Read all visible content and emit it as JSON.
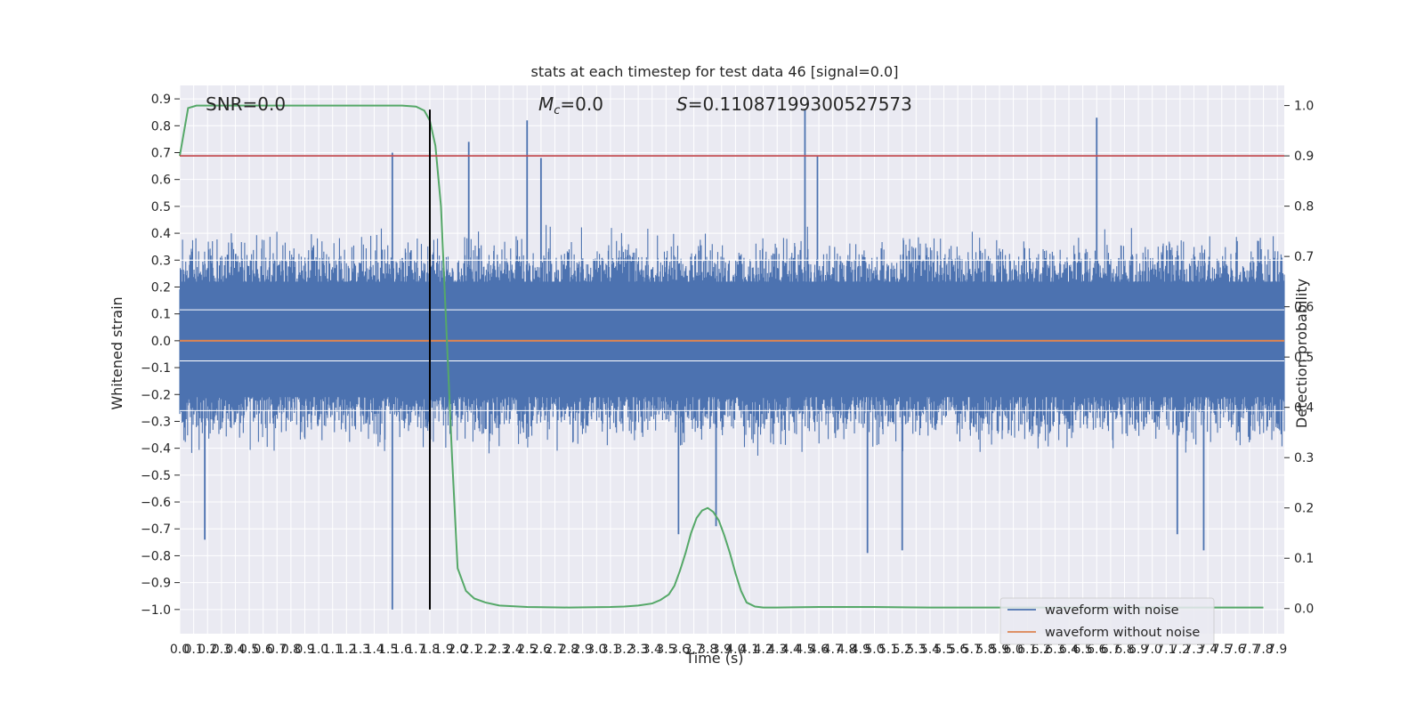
{
  "chart_data": {
    "type": "line",
    "title": "stats at each timestep for test data 46 [signal=0.0]",
    "xlabel": "Time (s)",
    "ylabel": "Whitened strain",
    "y2label": "Detection probability",
    "xlim": [
      0.0,
      7.95
    ],
    "ylim": [
      -1.09,
      0.95
    ],
    "y2lim": [
      -0.05,
      1.04
    ],
    "x_ticks": [
      0.0,
      0.1,
      0.2,
      0.3,
      0.4,
      0.5,
      0.6,
      0.7,
      0.8,
      0.9,
      1.0,
      1.1,
      1.2,
      1.3,
      1.4,
      1.5,
      1.6,
      1.7,
      1.8,
      1.9,
      2.0,
      2.1,
      2.2,
      2.3,
      2.4,
      2.5,
      2.6,
      2.7,
      2.8,
      2.9,
      3.0,
      3.1,
      3.2,
      3.3,
      3.4,
      3.5,
      3.6,
      3.7,
      3.8,
      3.9,
      4.0,
      4.1,
      4.2,
      4.3,
      4.4,
      4.5,
      4.6,
      4.7,
      4.8,
      4.9,
      5.0,
      5.1,
      5.2,
      5.3,
      5.4,
      5.5,
      5.6,
      5.7,
      5.8,
      5.9,
      6.0,
      6.1,
      6.2,
      6.3,
      6.4,
      6.5,
      6.6,
      6.7,
      6.8,
      6.9,
      7.0,
      7.1,
      7.2,
      7.3,
      7.4,
      7.5,
      7.6,
      7.7,
      7.8,
      7.9
    ],
    "x_tick_labels": [
      "0.0",
      "0.1",
      "0.2",
      "0.3",
      "0.4",
      "0.5",
      "0.6",
      "0.7",
      "0.8",
      "0.9",
      "1.0",
      "1.1",
      "1.2",
      "1.3",
      "1.4",
      "1.5",
      "1.6",
      "1.7",
      "1.8",
      "1.9",
      "2.0",
      "2.1",
      "2.2",
      "2.3",
      "2.4",
      "2.5",
      "2.6",
      "2.7",
      "2.8",
      "2.9",
      "3.0",
      "3.1",
      "3.2",
      "3.3",
      "3.4",
      "3.5",
      "3.6",
      "3.7",
      "3.8",
      "3.9",
      "4.0",
      "4.1",
      "4.2",
      "4.3",
      "4.4",
      "4.5",
      "4.6",
      "4.7",
      "4.8",
      "4.9",
      "5.0",
      "5.1",
      "5.2",
      "5.3",
      "5.4",
      "5.5",
      "5.6",
      "5.7",
      "5.8",
      "5.9",
      "6.0",
      "6.1",
      "6.2",
      "6.3",
      "6.4",
      "6.5",
      "6.6",
      "6.7",
      "6.8",
      "6.9",
      "7.0",
      "7.1",
      "7.2",
      "7.3",
      "7.4",
      "7.5",
      "7.6",
      "7.7",
      "7.8",
      "7.9"
    ],
    "y_ticks": [
      0.9,
      0.8,
      0.7,
      0.6,
      0.5,
      0.4,
      0.3,
      0.2,
      0.1,
      0.0,
      -0.1,
      -0.2,
      -0.3,
      -0.4,
      -0.5,
      -0.6,
      -0.7,
      -0.8,
      -0.9,
      -1.0
    ],
    "y_tick_labels": [
      "0.9",
      "0.8",
      "0.7",
      "0.6",
      "0.5",
      "0.4",
      "0.3",
      "0.2",
      "0.1",
      "0.0",
      "−0.1",
      "−0.2",
      "−0.3",
      "−0.4",
      "−0.5",
      "−0.6",
      "−0.7",
      "−0.8",
      "−0.9",
      "−1.0"
    ],
    "y2_ticks": [
      1.0,
      0.9,
      0.8,
      0.7,
      0.6,
      0.5,
      0.4,
      0.3,
      0.2,
      0.1,
      0.0
    ],
    "y2_tick_labels": [
      "1.0",
      "0.9",
      "0.8",
      "0.7",
      "0.6",
      "0.5",
      "0.4",
      "0.3",
      "0.2",
      "0.1",
      "0.0"
    ],
    "annotations": {
      "snr": "SNR=0.0",
      "mc_symbol": "M",
      "mc_subscript": "c",
      "mc_value": "=0.0",
      "s_symbol": "S",
      "s_value": "=0.11087199300527573"
    },
    "series": [
      {
        "name": "waveform with noise",
        "axis": "left",
        "color": "#4c72b0",
        "kind": "noise",
        "band_mean": 0.0,
        "band_spread": 0.33,
        "spikes": [
          {
            "x": 0.18,
            "y": -0.74
          },
          {
            "x": 1.53,
            "y": 0.7
          },
          {
            "x": 1.53,
            "y": -1.0
          },
          {
            "x": 2.08,
            "y": 0.74
          },
          {
            "x": 2.5,
            "y": 0.82
          },
          {
            "x": 2.6,
            "y": 0.68
          },
          {
            "x": 4.5,
            "y": 0.86
          },
          {
            "x": 4.59,
            "y": 0.69
          },
          {
            "x": 4.95,
            "y": -0.79
          },
          {
            "x": 5.2,
            "y": -0.78
          },
          {
            "x": 6.6,
            "y": 0.83
          },
          {
            "x": 7.37,
            "y": -0.78
          },
          {
            "x": 7.18,
            "y": -0.72
          },
          {
            "x": 3.86,
            "y": -0.69
          },
          {
            "x": 3.59,
            "y": -0.72
          }
        ]
      },
      {
        "name": "waveform without noise",
        "axis": "left",
        "color": "#dd8452",
        "kind": "line",
        "x": [
          0.0,
          7.95
        ],
        "y": [
          0.0,
          0.0
        ]
      },
      {
        "name": "detection probability",
        "axis": "right",
        "color": "#55a868",
        "kind": "line",
        "x": [
          0.0,
          0.06,
          0.12,
          0.2,
          0.4,
          0.8,
          1.2,
          1.5,
          1.6,
          1.7,
          1.76,
          1.8,
          1.84,
          1.88,
          1.92,
          1.96,
          2.0,
          2.06,
          2.12,
          2.2,
          2.3,
          2.5,
          2.8,
          3.1,
          3.2,
          3.3,
          3.4,
          3.46,
          3.52,
          3.56,
          3.6,
          3.64,
          3.68,
          3.72,
          3.76,
          3.8,
          3.84,
          3.88,
          3.92,
          3.96,
          4.0,
          4.04,
          4.08,
          4.14,
          4.2,
          4.3,
          4.6,
          5.0,
          5.4,
          6.0,
          6.6,
          7.2,
          7.8
        ],
        "y": [
          0.9,
          0.995,
          1.0,
          1.0,
          1.0,
          1.0,
          1.0,
          1.0,
          1.0,
          0.998,
          0.99,
          0.97,
          0.92,
          0.8,
          0.55,
          0.3,
          0.08,
          0.035,
          0.02,
          0.012,
          0.006,
          0.003,
          0.002,
          0.003,
          0.004,
          0.006,
          0.01,
          0.017,
          0.028,
          0.045,
          0.075,
          0.11,
          0.15,
          0.18,
          0.195,
          0.2,
          0.192,
          0.175,
          0.145,
          0.11,
          0.07,
          0.035,
          0.012,
          0.004,
          0.002,
          0.002,
          0.003,
          0.003,
          0.002,
          0.002,
          0.002,
          0.002,
          0.002
        ]
      }
    ],
    "hlines": [
      {
        "name": "threshold",
        "axis": "right",
        "y": 0.9,
        "color": "#c44e52"
      }
    ],
    "vlines": [
      {
        "name": "detection time",
        "x": 1.8,
        "y_from": -1.0,
        "y_to": 0.86,
        "color": "#000000"
      }
    ],
    "legend": {
      "placement": "lower-right",
      "entries": [
        {
          "label": "waveform with noise",
          "color": "#4c72b0"
        },
        {
          "label": "waveform without noise",
          "color": "#dd8452"
        }
      ]
    },
    "grid": true,
    "background": "#eaeaf2"
  }
}
